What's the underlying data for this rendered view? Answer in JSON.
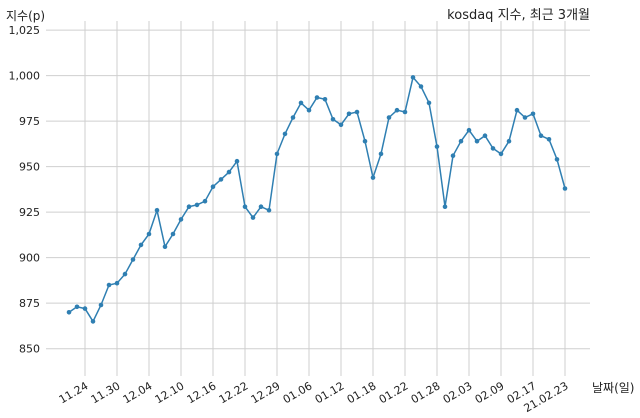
{
  "chart_data": {
    "type": "line",
    "title": "kosdaq 지수, 최근 3개월",
    "xlabel": "날짜(일)",
    "ylabel": "지수(p)",
    "ylim": [
      835,
      1030
    ],
    "yticks": [
      850,
      875,
      900,
      925,
      950,
      975,
      1000,
      1025
    ],
    "ytick_labels": [
      "850",
      "875",
      "900",
      "925",
      "950",
      "975",
      "1,000",
      "1,025"
    ],
    "grid": true,
    "color": "#2f7fb2",
    "x_labels": [
      "11.24",
      "11.30",
      "12.04",
      "12.10",
      "12.16",
      "12.22",
      "12.29",
      "01.06",
      "01.12",
      "01.18",
      "01.22",
      "01.28",
      "02.03",
      "02.09",
      "02.17",
      "21.02.23"
    ],
    "x_label_index": [
      2,
      6,
      10,
      14,
      18,
      22,
      26,
      30,
      34,
      38,
      42,
      46,
      50,
      54,
      58,
      62
    ],
    "x": [
      "11.20",
      "11.23",
      "11.24",
      "11.25",
      "11.26",
      "11.27",
      "11.30",
      "12.01",
      "12.02",
      "12.03",
      "12.04",
      "12.07",
      "12.08",
      "12.09",
      "12.10",
      "12.11",
      "12.14",
      "12.15",
      "12.16",
      "12.17",
      "12.18",
      "12.21",
      "12.22",
      "12.23",
      "12.24",
      "12.28",
      "12.29",
      "12.30",
      "01.04",
      "01.05",
      "01.06",
      "01.07",
      "01.08",
      "01.11",
      "01.12",
      "01.13",
      "01.14",
      "01.15",
      "01.18",
      "01.19",
      "01.20",
      "01.21",
      "01.22",
      "01.25",
      "01.26",
      "01.27",
      "01.28",
      "01.29",
      "02.01",
      "02.02",
      "02.03",
      "02.04",
      "02.05",
      "02.08",
      "02.09",
      "02.10",
      "02.15",
      "02.16",
      "02.17",
      "02.18",
      "02.19",
      "02.22",
      "02.23"
    ],
    "values": [
      870,
      873,
      872,
      865,
      874,
      885,
      886,
      891,
      899,
      907,
      913,
      926,
      906,
      913,
      921,
      928,
      929,
      931,
      939,
      943,
      947,
      953,
      928,
      922,
      928,
      926,
      957,
      968,
      977,
      985,
      981,
      988,
      987,
      976,
      973,
      979,
      980,
      964,
      944,
      957,
      977,
      981,
      980,
      999,
      994,
      985,
      961,
      928,
      956,
      964,
      970,
      964,
      967,
      960,
      957,
      964,
      981,
      977,
      979,
      967,
      965,
      954,
      938
    ]
  }
}
